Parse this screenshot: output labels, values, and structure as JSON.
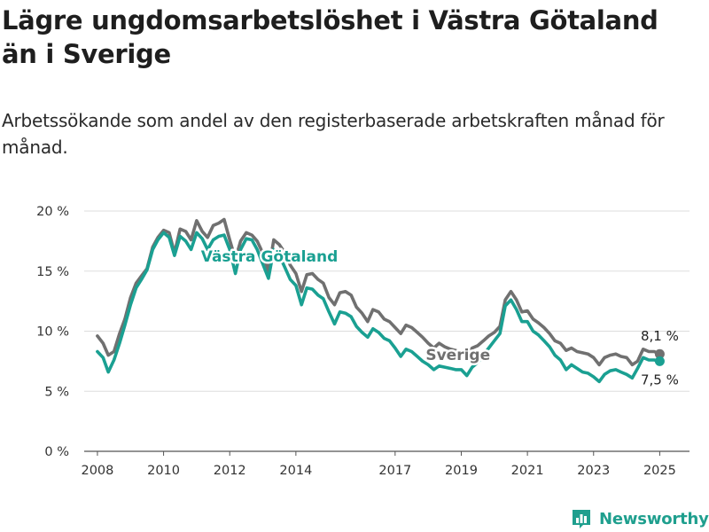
{
  "header": {
    "title": "Lägre ungdomsarbetslöshet i Västra Götaland än i Sverige",
    "subtitle": "Arbetssökande som andel av den registerbaserade arbetskraften månad för månad."
  },
  "brand": {
    "name": "Newsworthy",
    "icon": "newsworthy-logo-icon",
    "color": "#1f9f8e"
  },
  "chart_data": {
    "type": "line",
    "title": "Lägre ungdomsarbetslöshet i Västra Götaland än i Sverige",
    "subtitle": "Arbetssökande som andel av den registerbaserade arbetskraften månad för månad.",
    "xlabel": "",
    "ylabel": "",
    "xlim": [
      2007.6,
      2025.9
    ],
    "ylim": [
      0,
      20
    ],
    "x_ticks": [
      2008,
      2010,
      2012,
      2014,
      2017,
      2019,
      2021,
      2023,
      2025
    ],
    "x_tick_labels": [
      "2008",
      "2010",
      "2012",
      "2014",
      "2017",
      "2019",
      "2021",
      "2023",
      "2025"
    ],
    "y_ticks": [
      0,
      5,
      10,
      15,
      20
    ],
    "y_tick_labels": [
      "0 %",
      "5 %",
      "10 %",
      "15 %",
      "20 %"
    ],
    "grid": "horizontal",
    "legend": "inline labels",
    "series": [
      {
        "name": "Sverige",
        "color": "#707070",
        "end_label": "8,1 %",
        "points": [
          [
            2008.0,
            9.6
          ],
          [
            2008.17,
            9.0
          ],
          [
            2008.33,
            8.0
          ],
          [
            2008.5,
            8.3
          ],
          [
            2008.67,
            9.8
          ],
          [
            2008.83,
            11.0
          ],
          [
            2009.0,
            12.8
          ],
          [
            2009.17,
            14.0
          ],
          [
            2009.33,
            14.6
          ],
          [
            2009.5,
            15.2
          ],
          [
            2009.67,
            17.0
          ],
          [
            2009.83,
            17.8
          ],
          [
            2010.0,
            18.4
          ],
          [
            2010.17,
            18.2
          ],
          [
            2010.33,
            16.5
          ],
          [
            2010.5,
            18.5
          ],
          [
            2010.67,
            18.3
          ],
          [
            2010.83,
            17.6
          ],
          [
            2011.0,
            19.2
          ],
          [
            2011.17,
            18.3
          ],
          [
            2011.33,
            17.8
          ],
          [
            2011.5,
            18.8
          ],
          [
            2011.67,
            19.0
          ],
          [
            2011.83,
            19.3
          ],
          [
            2012.0,
            17.6
          ],
          [
            2012.17,
            16.0
          ],
          [
            2012.33,
            17.5
          ],
          [
            2012.5,
            18.2
          ],
          [
            2012.67,
            18.0
          ],
          [
            2012.83,
            17.5
          ],
          [
            2013.0,
            16.5
          ],
          [
            2013.17,
            15.0
          ],
          [
            2013.33,
            17.6
          ],
          [
            2013.5,
            17.2
          ],
          [
            2013.67,
            16.5
          ],
          [
            2013.83,
            15.5
          ],
          [
            2014.0,
            14.8
          ],
          [
            2014.17,
            13.3
          ],
          [
            2014.33,
            14.7
          ],
          [
            2014.5,
            14.8
          ],
          [
            2014.67,
            14.3
          ],
          [
            2014.83,
            14.0
          ],
          [
            2015.0,
            12.8
          ],
          [
            2015.17,
            12.2
          ],
          [
            2015.33,
            13.2
          ],
          [
            2015.5,
            13.3
          ],
          [
            2015.67,
            13.0
          ],
          [
            2015.83,
            12.0
          ],
          [
            2016.0,
            11.5
          ],
          [
            2016.17,
            10.8
          ],
          [
            2016.33,
            11.8
          ],
          [
            2016.5,
            11.6
          ],
          [
            2016.67,
            11.0
          ],
          [
            2016.83,
            10.8
          ],
          [
            2017.0,
            10.3
          ],
          [
            2017.17,
            9.8
          ],
          [
            2017.33,
            10.5
          ],
          [
            2017.5,
            10.3
          ],
          [
            2017.67,
            9.9
          ],
          [
            2017.83,
            9.5
          ],
          [
            2018.0,
            9.0
          ],
          [
            2018.17,
            8.6
          ],
          [
            2018.33,
            9.0
          ],
          [
            2018.5,
            8.7
          ],
          [
            2018.67,
            8.5
          ],
          [
            2018.83,
            8.4
          ],
          [
            2019.0,
            8.2
          ],
          [
            2019.17,
            7.9
          ],
          [
            2019.33,
            8.6
          ],
          [
            2019.5,
            8.8
          ],
          [
            2019.67,
            9.2
          ],
          [
            2019.83,
            9.6
          ],
          [
            2020.0,
            9.9
          ],
          [
            2020.17,
            10.4
          ],
          [
            2020.33,
            12.6
          ],
          [
            2020.5,
            13.3
          ],
          [
            2020.67,
            12.6
          ],
          [
            2020.83,
            11.6
          ],
          [
            2021.0,
            11.7
          ],
          [
            2021.17,
            11.0
          ],
          [
            2021.33,
            10.7
          ],
          [
            2021.5,
            10.3
          ],
          [
            2021.67,
            9.8
          ],
          [
            2021.83,
            9.2
          ],
          [
            2022.0,
            9.0
          ],
          [
            2022.17,
            8.4
          ],
          [
            2022.33,
            8.6
          ],
          [
            2022.5,
            8.3
          ],
          [
            2022.67,
            8.2
          ],
          [
            2022.83,
            8.1
          ],
          [
            2023.0,
            7.8
          ],
          [
            2023.17,
            7.2
          ],
          [
            2023.33,
            7.8
          ],
          [
            2023.5,
            8.0
          ],
          [
            2023.67,
            8.1
          ],
          [
            2023.83,
            7.9
          ],
          [
            2024.0,
            7.8
          ],
          [
            2024.17,
            7.2
          ],
          [
            2024.33,
            7.5
          ],
          [
            2024.5,
            8.5
          ],
          [
            2024.67,
            8.3
          ],
          [
            2024.83,
            8.3
          ],
          [
            2025.0,
            8.1
          ]
        ]
      },
      {
        "name": "Västra Götaland",
        "color": "#1aa092",
        "end_label": "7,5 %",
        "points": [
          [
            2008.0,
            8.3
          ],
          [
            2008.17,
            7.8
          ],
          [
            2008.33,
            6.6
          ],
          [
            2008.5,
            7.6
          ],
          [
            2008.67,
            9.0
          ],
          [
            2008.83,
            10.5
          ],
          [
            2009.0,
            12.2
          ],
          [
            2009.17,
            13.6
          ],
          [
            2009.33,
            14.3
          ],
          [
            2009.5,
            15.1
          ],
          [
            2009.67,
            16.8
          ],
          [
            2009.83,
            17.6
          ],
          [
            2010.0,
            18.2
          ],
          [
            2010.17,
            17.8
          ],
          [
            2010.33,
            16.3
          ],
          [
            2010.5,
            17.9
          ],
          [
            2010.67,
            17.5
          ],
          [
            2010.83,
            16.8
          ],
          [
            2011.0,
            18.2
          ],
          [
            2011.17,
            17.7
          ],
          [
            2011.33,
            16.8
          ],
          [
            2011.5,
            17.6
          ],
          [
            2011.67,
            17.9
          ],
          [
            2011.83,
            18.0
          ],
          [
            2012.0,
            16.8
          ],
          [
            2012.17,
            14.8
          ],
          [
            2012.33,
            16.8
          ],
          [
            2012.5,
            17.7
          ],
          [
            2012.67,
            17.6
          ],
          [
            2012.83,
            16.8
          ],
          [
            2013.0,
            15.6
          ],
          [
            2013.17,
            14.4
          ],
          [
            2013.33,
            16.8
          ],
          [
            2013.5,
            16.3
          ],
          [
            2013.67,
            15.3
          ],
          [
            2013.83,
            14.3
          ],
          [
            2014.0,
            13.8
          ],
          [
            2014.17,
            12.2
          ],
          [
            2014.33,
            13.6
          ],
          [
            2014.5,
            13.5
          ],
          [
            2014.67,
            13.0
          ],
          [
            2014.83,
            12.7
          ],
          [
            2015.0,
            11.6
          ],
          [
            2015.17,
            10.6
          ],
          [
            2015.33,
            11.6
          ],
          [
            2015.5,
            11.5
          ],
          [
            2015.67,
            11.2
          ],
          [
            2015.83,
            10.4
          ],
          [
            2016.0,
            9.9
          ],
          [
            2016.17,
            9.5
          ],
          [
            2016.33,
            10.2
          ],
          [
            2016.5,
            9.9
          ],
          [
            2016.67,
            9.4
          ],
          [
            2016.83,
            9.2
          ],
          [
            2017.0,
            8.6
          ],
          [
            2017.17,
            7.9
          ],
          [
            2017.33,
            8.5
          ],
          [
            2017.5,
            8.3
          ],
          [
            2017.67,
            7.9
          ],
          [
            2017.83,
            7.5
          ],
          [
            2018.0,
            7.2
          ],
          [
            2018.17,
            6.8
          ],
          [
            2018.33,
            7.1
          ],
          [
            2018.5,
            7.0
          ],
          [
            2018.67,
            6.9
          ],
          [
            2018.83,
            6.8
          ],
          [
            2019.0,
            6.8
          ],
          [
            2019.17,
            6.3
          ],
          [
            2019.33,
            7.0
          ],
          [
            2019.5,
            7.4
          ],
          [
            2019.67,
            8.0
          ],
          [
            2019.83,
            8.6
          ],
          [
            2020.0,
            9.2
          ],
          [
            2020.17,
            9.8
          ],
          [
            2020.33,
            12.1
          ],
          [
            2020.5,
            12.6
          ],
          [
            2020.67,
            11.8
          ],
          [
            2020.83,
            10.8
          ],
          [
            2021.0,
            10.8
          ],
          [
            2021.17,
            10.0
          ],
          [
            2021.33,
            9.7
          ],
          [
            2021.5,
            9.2
          ],
          [
            2021.67,
            8.7
          ],
          [
            2021.83,
            8.0
          ],
          [
            2022.0,
            7.6
          ],
          [
            2022.17,
            6.8
          ],
          [
            2022.33,
            7.2
          ],
          [
            2022.5,
            6.9
          ],
          [
            2022.67,
            6.6
          ],
          [
            2022.83,
            6.5
          ],
          [
            2023.0,
            6.2
          ],
          [
            2023.17,
            5.8
          ],
          [
            2023.33,
            6.4
          ],
          [
            2023.5,
            6.7
          ],
          [
            2023.67,
            6.8
          ],
          [
            2023.83,
            6.6
          ],
          [
            2024.0,
            6.4
          ],
          [
            2024.17,
            6.1
          ],
          [
            2024.33,
            6.9
          ],
          [
            2024.5,
            7.8
          ],
          [
            2024.67,
            7.6
          ],
          [
            2024.83,
            7.6
          ],
          [
            2025.0,
            7.5
          ]
        ]
      }
    ]
  }
}
